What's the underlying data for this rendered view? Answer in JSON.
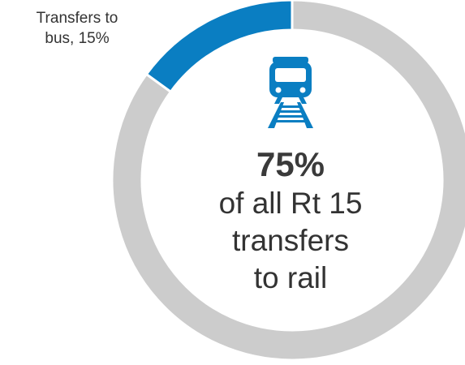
{
  "chart_data": {
    "type": "pie",
    "variant": "donut",
    "slices": [
      {
        "label": "Transfers to bus",
        "value": 15,
        "color": "#0a7ec2"
      },
      {
        "label": "",
        "value": 85,
        "color": "#cccccc"
      }
    ],
    "slice_label": {
      "line1": "Transfers to",
      "line2": "bus, 15%"
    },
    "center": {
      "percent": "75%",
      "lines": [
        "of all Rt 15",
        "transfers",
        "to rail"
      ]
    }
  },
  "icon": {
    "name": "train-icon",
    "color": "#0a7ec2"
  }
}
